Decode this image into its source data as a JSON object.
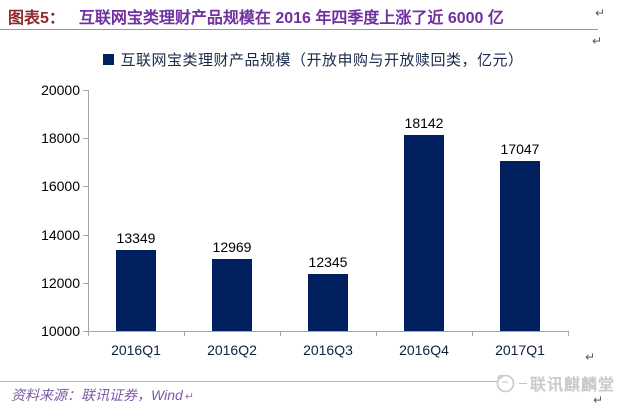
{
  "header": {
    "label": "图表5：",
    "title": "互联网宝类理财产品规模在 2016 年四季度上涨了近 6000 亿"
  },
  "legend": {
    "label": "互联网宝类理财产品规模（开放申购与开放赎回类，亿元）"
  },
  "chart_data": {
    "type": "bar",
    "title": "互联网宝类理财产品规模在 2016 年四季度上涨了近 6000 亿",
    "series_name": "互联网宝类理财产品规模（开放申购与开放赎回类，亿元）",
    "categories": [
      "2016Q1",
      "2016Q2",
      "2016Q3",
      "2016Q4",
      "2017Q1"
    ],
    "values": [
      13349,
      12969,
      12345,
      18142,
      17047
    ],
    "xlabel": "",
    "ylabel": "",
    "ylim": [
      10000,
      20000
    ],
    "yticks": [
      10000,
      12000,
      14000,
      16000,
      18000,
      20000
    ],
    "grid": false,
    "legend_position": "top",
    "data_labels": true
  },
  "footer": {
    "source": "资料来源：联讯证券，Wind",
    "brand": "联讯麒麟堂"
  },
  "marks": {
    "pilcrow": "↵"
  },
  "colors": {
    "bar": "#002060",
    "axis": "#a6a6a6",
    "caption_label": "#8c2b2b",
    "caption_title": "#7030a0",
    "source_text": "#7d59a5",
    "brand_gray": "#c9c9c9"
  }
}
